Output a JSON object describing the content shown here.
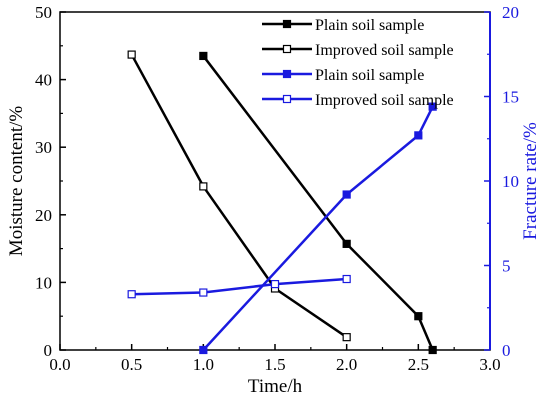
{
  "chart_data": {
    "type": "line",
    "x_axis": {
      "label": "Time/h",
      "range": [
        0.0,
        3.0
      ],
      "ticks": [
        "0.0",
        "0.5",
        "1.0",
        "1.5",
        "2.0",
        "2.5",
        "3.0"
      ],
      "tick_values": [
        0.0,
        0.5,
        1.0,
        1.5,
        2.0,
        2.5,
        3.0
      ],
      "color": "#000000"
    },
    "y_left": {
      "label": "Moisture content/%",
      "range": [
        0,
        50
      ],
      "ticks": [
        "0",
        "10",
        "20",
        "30",
        "40",
        "50"
      ],
      "tick_values": [
        0,
        10,
        20,
        30,
        40,
        50
      ],
      "color": "#000000"
    },
    "y_right": {
      "label": "Fracture rate/%",
      "range": [
        0,
        20
      ],
      "ticks": [
        "0",
        "5",
        "10",
        "15",
        "20"
      ],
      "tick_values": [
        0,
        5,
        10,
        15,
        20
      ],
      "color": "#1a1adf"
    },
    "legend_position": "top-right",
    "grid": false,
    "series": [
      {
        "name": "Plain soil sample",
        "axis": "left",
        "color": "#000000",
        "marker": "filled-square",
        "x": [
          1.0,
          2.0,
          2.5,
          2.6
        ],
        "y": [
          43.5,
          15.7,
          5.0,
          0.0
        ]
      },
      {
        "name": "Improved soil sample",
        "axis": "left",
        "color": "#000000",
        "marker": "open-square",
        "x": [
          0.5,
          1.0,
          1.5,
          2.0
        ],
        "y": [
          43.7,
          24.2,
          9.1,
          1.9
        ]
      },
      {
        "name": "Plain soil sample",
        "axis": "right",
        "color": "#1a1adf",
        "marker": "filled-square",
        "x": [
          1.0,
          2.0,
          2.5,
          2.6
        ],
        "y": [
          0.0,
          9.2,
          12.7,
          14.4
        ]
      },
      {
        "name": "Improved soil sample",
        "axis": "right",
        "color": "#1a1adf",
        "marker": "open-square",
        "x": [
          0.5,
          1.0,
          1.5,
          2.0
        ],
        "y": [
          3.3,
          3.4,
          3.9,
          4.2
        ]
      }
    ]
  }
}
